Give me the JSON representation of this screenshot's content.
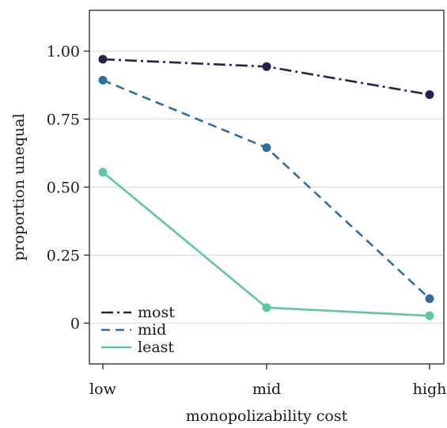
{
  "chart_data": {
    "type": "line",
    "title": "",
    "xlabel": "monopolizability cost",
    "ylabel": "proportion unequal",
    "categories": [
      "low",
      "mid",
      "high"
    ],
    "ylim": [
      -0.15,
      1.15
    ],
    "yticks": [
      0,
      0.25,
      0.5,
      0.75,
      1.0
    ],
    "ytick_labels": [
      "0",
      "0.25",
      "0.50",
      "0.75",
      "1.00"
    ],
    "grid": "horizontal",
    "legend_position": "bottom-left",
    "series": [
      {
        "name": "most",
        "values": [
          0.97,
          0.943,
          0.84
        ],
        "color": "#2a1f4f",
        "dash": "dashdot"
      },
      {
        "name": "mid",
        "values": [
          0.893,
          0.645,
          0.09
        ],
        "color": "#2f6f9f",
        "dash": "dashed"
      },
      {
        "name": "least",
        "values": [
          0.555,
          0.057,
          0.027
        ],
        "color": "#5ec7a1",
        "dash": "solid"
      }
    ]
  }
}
